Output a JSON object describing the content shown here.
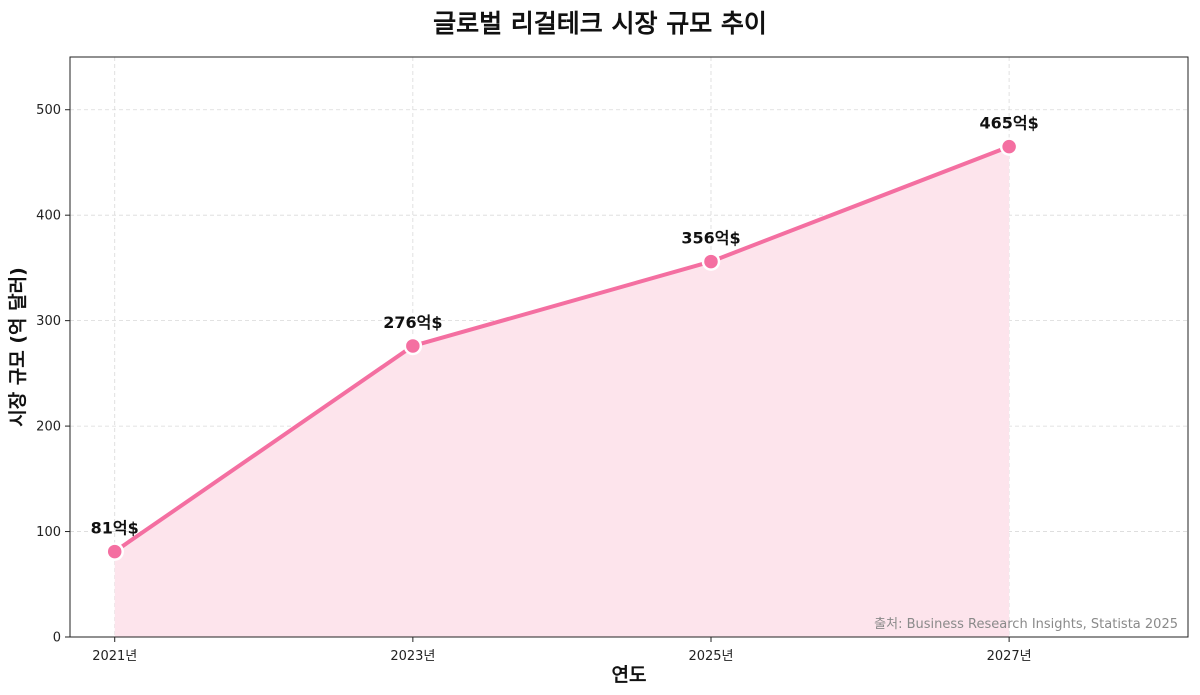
{
  "chart_data": {
    "type": "area",
    "title": "글로벌 리걸테크 시장 규모 추이",
    "xlabel": "연도",
    "ylabel": "시장 규모 (억 달러)",
    "x": [
      2021,
      2023,
      2025,
      2027
    ],
    "tick_labels_x": [
      "2021년",
      "2023년",
      "2025년",
      "2027년"
    ],
    "xlim": [
      2020.7,
      2028.2
    ],
    "ylim": [
      0,
      550
    ],
    "y_ticks": [
      0,
      100,
      200,
      300,
      400,
      500
    ],
    "series": [
      {
        "values": [
          81,
          276,
          356,
          465
        ],
        "data_labels": [
          "81억$",
          "276억$",
          "356억$",
          "465억$"
        ],
        "color": "#f46fa1",
        "fill_color": "#fde4ec"
      }
    ],
    "grid": true,
    "source": "출처: Business Research Insights, Statista 2025"
  }
}
